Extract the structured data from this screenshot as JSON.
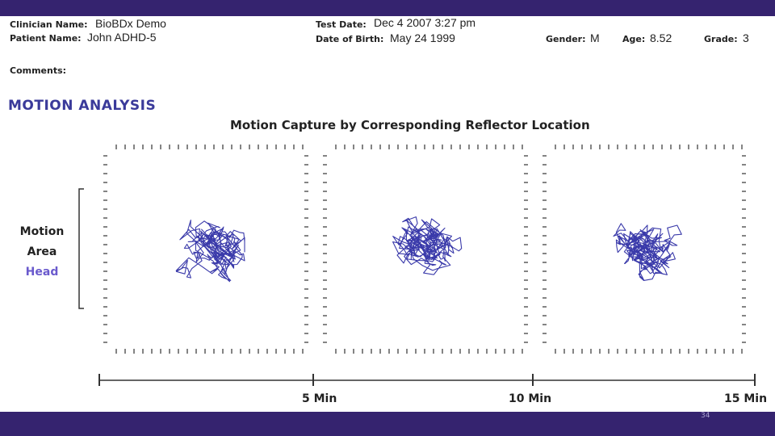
{
  "header": {
    "clinician_label": "Clinician Name:",
    "clinician": "BioBDx Demo",
    "patient_label": "Patient Name:",
    "patient": "John ADHD-5",
    "test_date_label": "Test Date:",
    "test_date": "Dec 4 2007 3:27 pm",
    "dob_label": "Date of Birth:",
    "dob": "May 24 1999",
    "gender_label": "Gender:",
    "gender": "M",
    "age_label": "Age:",
    "age": "8.52",
    "grade_label": "Grade:",
    "grade": "3",
    "comments_label": "Comments:"
  },
  "section_title": "MOTION ANALYSIS",
  "figure": {
    "title": "Motion Capture by Corresponding Reflector Location",
    "y_label": [
      "Motion",
      "Area",
      "Head"
    ],
    "timeline": [
      "5 Min",
      "10 Min",
      "15 Min"
    ]
  },
  "slide_number": "34"
}
